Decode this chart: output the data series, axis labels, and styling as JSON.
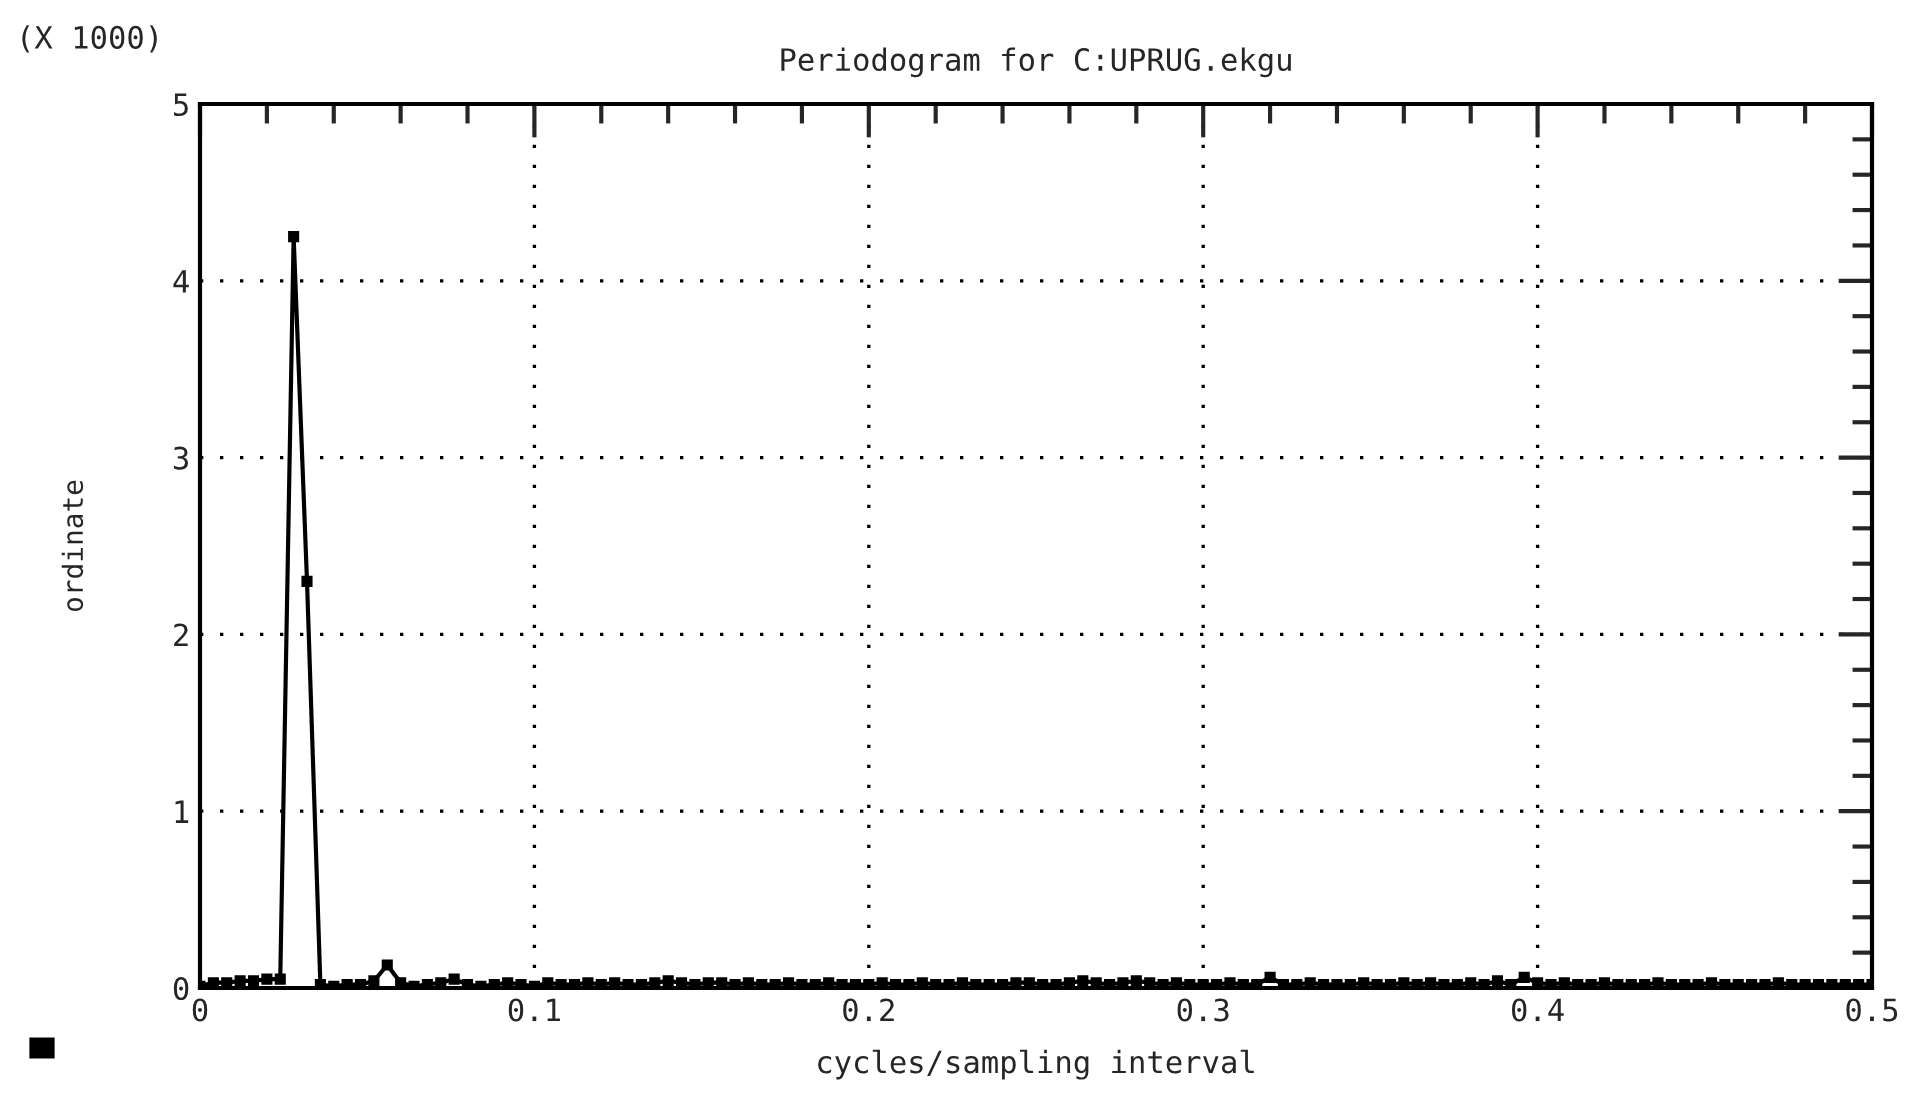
{
  "chart_data": {
    "type": "line",
    "title": "Periodogram for C:UPRUG.ekgu",
    "xlabel": "cycles/sampling interval",
    "ylabel": "ordinate",
    "annotations": [
      "(X 1000)"
    ],
    "series": [
      {
        "color": "#000000",
        "x": [
          0,
          0.004,
          0.008,
          0.012,
          0.016,
          0.02,
          0.024,
          0.028,
          0.032,
          0.036,
          0.04,
          0.044,
          0.048,
          0.052,
          0.056,
          0.06,
          0.064,
          0.068,
          0.072,
          0.076,
          0.08,
          0.084,
          0.088,
          0.092,
          0.096,
          0.1,
          0.104,
          0.108,
          0.112,
          0.116,
          0.12,
          0.124,
          0.128,
          0.132,
          0.136,
          0.14,
          0.144,
          0.148,
          0.152,
          0.156,
          0.16,
          0.164,
          0.168,
          0.172,
          0.176,
          0.18,
          0.184,
          0.188,
          0.192,
          0.196,
          0.2,
          0.204,
          0.208,
          0.212,
          0.216,
          0.22,
          0.224,
          0.228,
          0.232,
          0.236,
          0.24,
          0.244,
          0.248,
          0.252,
          0.256,
          0.26,
          0.264,
          0.268,
          0.272,
          0.276,
          0.28,
          0.284,
          0.288,
          0.292,
          0.296,
          0.3,
          0.304,
          0.308,
          0.312,
          0.316,
          0.32,
          0.324,
          0.328,
          0.332,
          0.336,
          0.34,
          0.344,
          0.348,
          0.352,
          0.356,
          0.36,
          0.364,
          0.368,
          0.372,
          0.376,
          0.38,
          0.384,
          0.388,
          0.392,
          0.396,
          0.4,
          0.404,
          0.408,
          0.412,
          0.416,
          0.42,
          0.424,
          0.428,
          0.432,
          0.436,
          0.44,
          0.444,
          0.448,
          0.452,
          0.456,
          0.46,
          0.464,
          0.468,
          0.472,
          0.476,
          0.48,
          0.484,
          0.488,
          0.492,
          0.496,
          0.5
        ],
        "values": [
          0.01,
          0.03,
          0.03,
          0.04,
          0.04,
          0.05,
          0.05,
          4.25,
          2.3,
          0.02,
          0.01,
          0.02,
          0.02,
          0.04,
          0.13,
          0.03,
          0.01,
          0.02,
          0.03,
          0.05,
          0.02,
          0.01,
          0.02,
          0.03,
          0.02,
          0.01,
          0.03,
          0.02,
          0.02,
          0.03,
          0.02,
          0.03,
          0.02,
          0.02,
          0.03,
          0.04,
          0.03,
          0.02,
          0.03,
          0.03,
          0.02,
          0.03,
          0.02,
          0.02,
          0.03,
          0.02,
          0.02,
          0.03,
          0.02,
          0.02,
          0.02,
          0.03,
          0.02,
          0.02,
          0.03,
          0.02,
          0.02,
          0.03,
          0.02,
          0.02,
          0.02,
          0.03,
          0.03,
          0.02,
          0.02,
          0.03,
          0.04,
          0.03,
          0.02,
          0.03,
          0.04,
          0.03,
          0.02,
          0.03,
          0.02,
          0.02,
          0.02,
          0.03,
          0.02,
          0.02,
          0.06,
          0.02,
          0.02,
          0.03,
          0.02,
          0.02,
          0.02,
          0.03,
          0.02,
          0.02,
          0.03,
          0.02,
          0.03,
          0.02,
          0.02,
          0.03,
          0.02,
          0.04,
          0.02,
          0.06,
          0.03,
          0.02,
          0.03,
          0.02,
          0.02,
          0.03,
          0.02,
          0.02,
          0.02,
          0.03,
          0.02,
          0.02,
          0.02,
          0.03,
          0.02,
          0.02,
          0.02,
          0.02,
          0.03,
          0.02,
          0.02,
          0.02,
          0.02,
          0.02,
          0.02,
          0.02
        ]
      }
    ],
    "xlim": [
      0,
      0.5
    ],
    "xticks": [
      0,
      0.1,
      0.2,
      0.3,
      0.4,
      0.5
    ],
    "ylim": [
      0,
      5
    ],
    "yticks": [
      0,
      1,
      2,
      3,
      4,
      5
    ],
    "grid": true,
    "marker": "square",
    "line_style": "solid"
  }
}
